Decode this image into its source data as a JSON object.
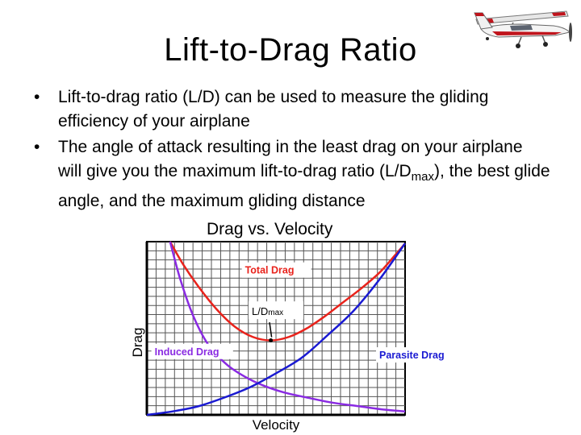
{
  "slide": {
    "title": "Lift-to-Drag Ratio",
    "bullets": [
      {
        "text": "Lift-to-drag ratio (L/D) can be used to measure the gliding efficiency of your airplane"
      },
      {
        "text_before": "The angle of attack resulting in the least drag on your airplane will give you the maximum lift-to-drag ratio (L/D",
        "subscript": "max",
        "text_after": "), the best glide angle, and the maximum gliding distance"
      }
    ],
    "bullet_glyph": "•",
    "airplane_icon": "cessna-airplane-icon"
  },
  "chart_data": {
    "type": "line",
    "title": "Drag vs. Velocity",
    "xlabel": "Velocity",
    "ylabel": "Drag",
    "grid": true,
    "xlim": [
      0,
      1
    ],
    "ylim": [
      0,
      1
    ],
    "series": [
      {
        "name": "Total Drag",
        "color": "#e8231c",
        "x": [
          0.09,
          0.14,
          0.2,
          0.27,
          0.34,
          0.41,
          0.48,
          0.55,
          0.62,
          0.69,
          0.76,
          0.83,
          0.9,
          0.96,
          1.0
        ],
        "y": [
          1.0,
          0.87,
          0.74,
          0.61,
          0.51,
          0.45,
          0.43,
          0.45,
          0.5,
          0.57,
          0.65,
          0.73,
          0.82,
          0.92,
          0.99
        ]
      },
      {
        "name": "Induced Drag",
        "color": "#8a2be2",
        "x": [
          0.09,
          0.13,
          0.18,
          0.24,
          0.31,
          0.38,
          0.45,
          0.53,
          0.62,
          0.72,
          0.82,
          0.92,
          1.0
        ],
        "y": [
          1.0,
          0.78,
          0.57,
          0.4,
          0.29,
          0.22,
          0.17,
          0.13,
          0.1,
          0.07,
          0.05,
          0.03,
          0.02
        ]
      },
      {
        "name": "Parasite Drag",
        "color": "#1a1ad2",
        "x": [
          0.0,
          0.1,
          0.2,
          0.3,
          0.4,
          0.5,
          0.6,
          0.7,
          0.8,
          0.9,
          1.0
        ],
        "y": [
          0.0,
          0.02,
          0.05,
          0.1,
          0.16,
          0.24,
          0.33,
          0.46,
          0.6,
          0.78,
          0.99
        ]
      }
    ],
    "annotations": [
      {
        "text": "Total Drag",
        "color": "#e8231c",
        "x": 0.38,
        "y": 0.82
      },
      {
        "text": "Induced Drag",
        "color": "#8a2be2",
        "x": 0.03,
        "y": 0.35
      },
      {
        "text": "Parasite Drag",
        "color": "#1a1ad2",
        "x": 0.9,
        "y": 0.33
      },
      {
        "text_main": "L/D",
        "text_sub": "max",
        "color": "#000000",
        "x": 0.5,
        "y": 0.59,
        "arrow_to": {
          "x": 0.48,
          "y": 0.43
        }
      }
    ]
  }
}
